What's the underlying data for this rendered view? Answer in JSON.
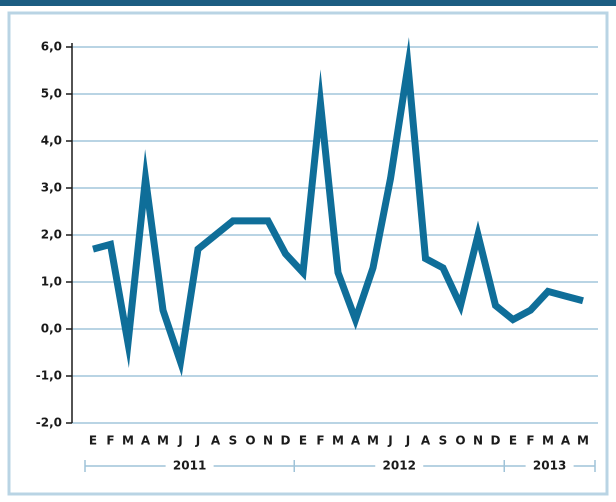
{
  "chart_data": {
    "type": "line",
    "categories": [
      "E",
      "F",
      "M",
      "A",
      "M",
      "J",
      "J",
      "A",
      "S",
      "O",
      "N",
      "D",
      "E",
      "F",
      "M",
      "A",
      "M",
      "J",
      "J",
      "A",
      "S",
      "O",
      "N",
      "D",
      "E",
      "F",
      "M",
      "A",
      "M"
    ],
    "year_groups": [
      "2011",
      "2012",
      "2013"
    ],
    "series": [
      {
        "color": "#0f6e99",
        "values": [
          1.7,
          1.8,
          -0.3,
          3.2,
          0.4,
          -0.7,
          1.7,
          2.0,
          2.3,
          2.3,
          2.3,
          1.6,
          1.2,
          4.8,
          1.2,
          0.2,
          1.3,
          3.2,
          5.6,
          1.5,
          1.3,
          0.5,
          2.0,
          0.5,
          0.2,
          0.4,
          0.8,
          0.7,
          0.6
        ]
      }
    ],
    "ylim": [
      -2,
      6
    ],
    "yticks": [
      {
        "value": -2,
        "label": "-2,0"
      },
      {
        "value": -1,
        "label": "-1,0"
      },
      {
        "value": 0,
        "label": "0,0"
      },
      {
        "value": 1,
        "label": "1,0"
      },
      {
        "value": 2,
        "label": "2,0"
      },
      {
        "value": 3,
        "label": "3,0"
      },
      {
        "value": 4,
        "label": "4,0"
      },
      {
        "value": 5,
        "label": "5,0"
      },
      {
        "value": 6,
        "label": "6,0"
      }
    ],
    "grid": true
  }
}
